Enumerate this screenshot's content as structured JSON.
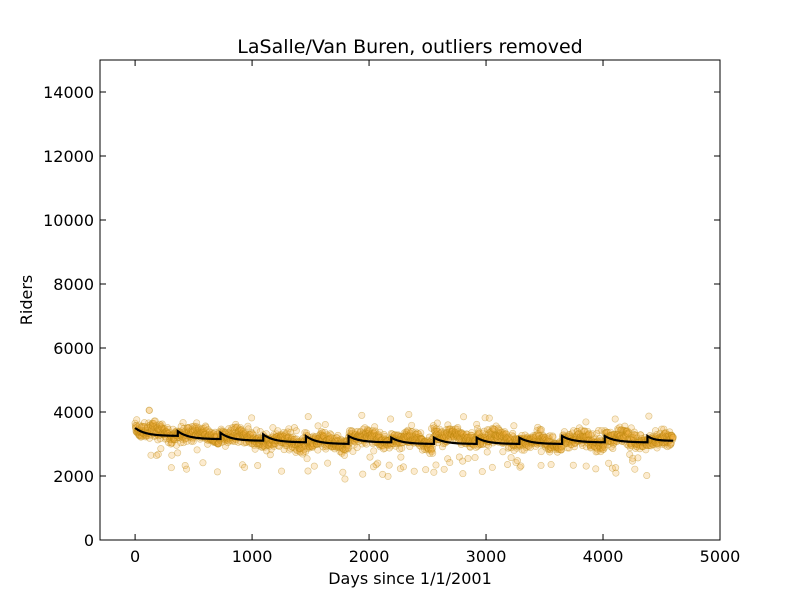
{
  "chart_data": {
    "type": "scatter",
    "title": "LaSalle/Van Buren, outliers removed",
    "xlabel": "Days since 1/1/2001",
    "ylabel": "Riders",
    "xlim": [
      -300,
      5000
    ],
    "ylim": [
      0,
      15000
    ],
    "xticks": [
      0,
      1000,
      2000,
      3000,
      4000,
      5000
    ],
    "yticks": [
      0,
      2000,
      4000,
      6000,
      8000,
      10000,
      12000,
      14000
    ],
    "grid": false,
    "legend": "none",
    "x_range_of_data": [
      0,
      4600
    ],
    "marker_fill": "#f5b041",
    "marker_edge": "#b8860b",
    "marker_alpha": 0.25,
    "line_color": "#000000",
    "series": [
      {
        "kind": "points",
        "note_values": "daily ridership, roughly 2100-4000, centered near 3100",
        "mean_by_year": [
          {
            "x_start": 0,
            "x_end": 365,
            "level": 3350
          },
          {
            "x_start": 365,
            "x_end": 730,
            "level": 3250
          },
          {
            "x_start": 730,
            "x_end": 1095,
            "level": 3200
          },
          {
            "x_start": 1095,
            "x_end": 1460,
            "level": 3050
          },
          {
            "x_start": 1460,
            "x_end": 1825,
            "level": 3050
          },
          {
            "x_start": 1825,
            "x_end": 2190,
            "level": 3150
          },
          {
            "x_start": 2190,
            "x_end": 2555,
            "level": 3100
          },
          {
            "x_start": 2555,
            "x_end": 2920,
            "level": 3200
          },
          {
            "x_start": 2920,
            "x_end": 3285,
            "level": 3150
          },
          {
            "x_start": 3285,
            "x_end": 3650,
            "level": 3050
          },
          {
            "x_start": 3650,
            "x_end": 4015,
            "level": 3100
          },
          {
            "x_start": 4015,
            "x_end": 4380,
            "level": 3150
          },
          {
            "x_start": 4380,
            "x_end": 4600,
            "level": 3050
          }
        ]
      },
      {
        "kind": "line",
        "yearly_jumps": [
          {
            "x_start": 0,
            "x_end": 365,
            "start": 3500,
            "end": 3250
          },
          {
            "x_start": 365,
            "x_end": 730,
            "start": 3400,
            "end": 3150
          },
          {
            "x_start": 730,
            "x_end": 1095,
            "start": 3350,
            "end": 3100
          },
          {
            "x_start": 1095,
            "x_end": 1460,
            "start": 3300,
            "end": 3050
          },
          {
            "x_start": 1460,
            "x_end": 1825,
            "start": 3250,
            "end": 3000
          },
          {
            "x_start": 1825,
            "x_end": 2190,
            "start": 3250,
            "end": 3050
          },
          {
            "x_start": 2190,
            "x_end": 2555,
            "start": 3200,
            "end": 3000
          },
          {
            "x_start": 2555,
            "x_end": 2920,
            "start": 3200,
            "end": 3000
          },
          {
            "x_start": 2920,
            "x_end": 3285,
            "start": 3200,
            "end": 3000
          },
          {
            "x_start": 3285,
            "x_end": 3650,
            "start": 3200,
            "end": 3000
          },
          {
            "x_start": 3650,
            "x_end": 4015,
            "start": 3250,
            "end": 3050
          },
          {
            "x_start": 4015,
            "x_end": 4380,
            "start": 3250,
            "end": 3050
          },
          {
            "x_start": 4380,
            "x_end": 4600,
            "start": 3250,
            "end": 3100
          }
        ]
      }
    ]
  }
}
